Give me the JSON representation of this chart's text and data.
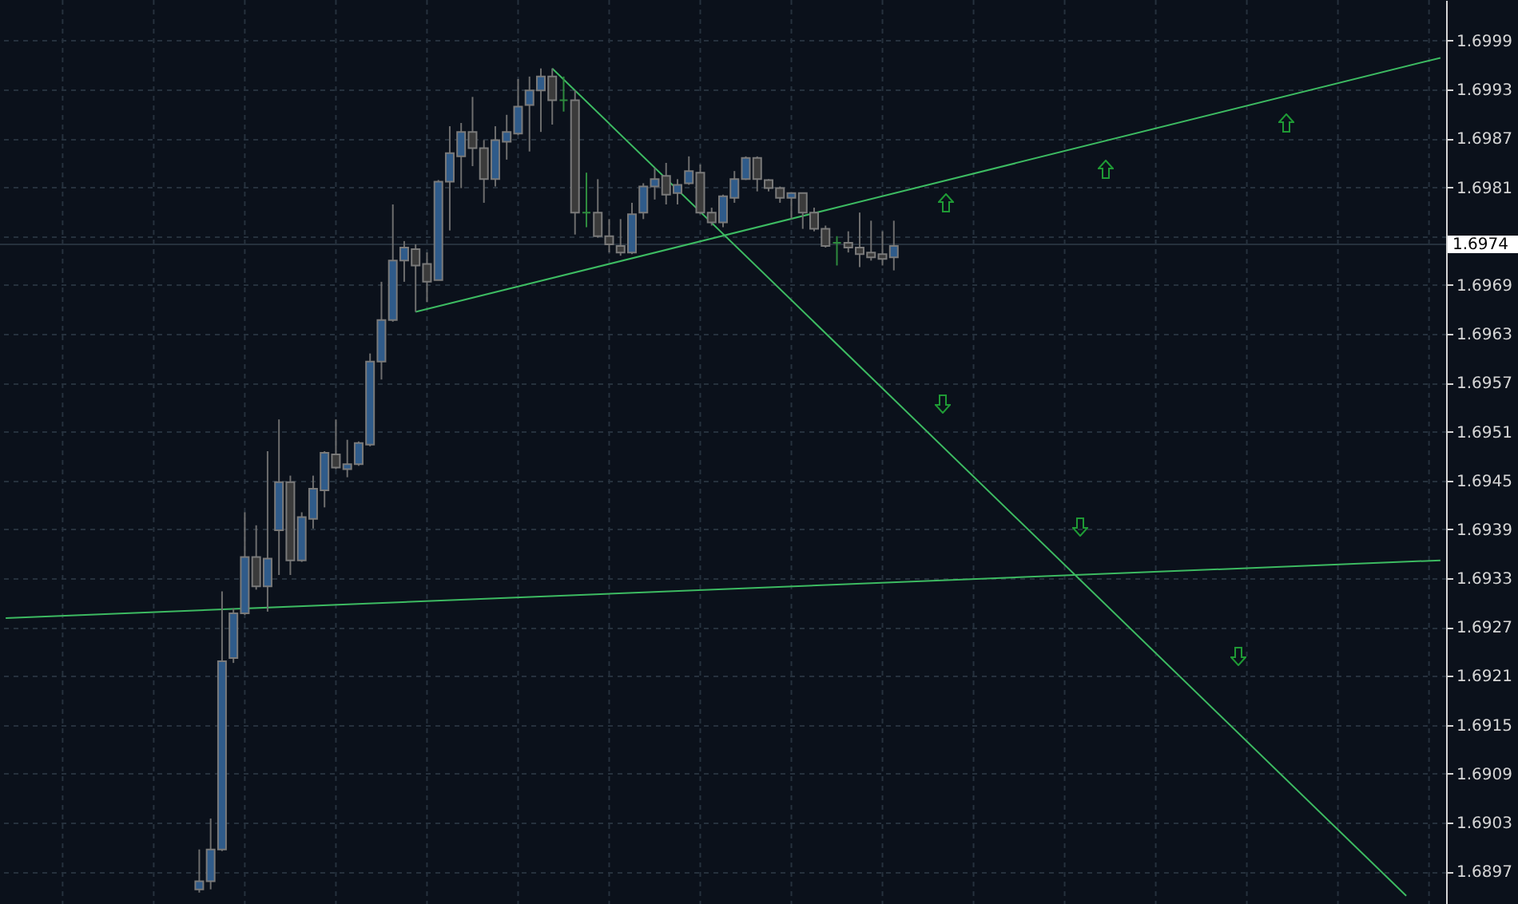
{
  "chart_data": {
    "type": "candlestick",
    "categories": [
      null,
      null,
      null,
      null,
      null,
      null,
      null,
      null,
      null,
      null,
      null,
      null,
      null,
      null,
      null,
      null,
      null,
      null,
      null,
      null,
      null,
      null,
      null,
      null,
      null,
      null,
      null,
      null,
      null,
      null,
      null,
      null,
      null,
      null,
      null,
      null,
      null,
      null,
      null,
      null,
      null,
      null,
      null,
      null,
      null,
      null,
      null,
      null,
      null,
      null,
      null,
      null,
      null,
      null,
      null,
      null,
      null,
      null,
      null,
      null,
      null,
      null,
      null,
      null,
      null,
      null,
      null,
      null,
      null,
      null,
      null,
      null,
      null,
      null,
      null,
      null,
      null,
      null,
      null,
      null,
      null,
      null,
      null,
      null,
      null,
      null,
      null,
      null,
      null,
      null,
      null,
      null,
      null,
      null,
      null,
      null,
      null,
      null,
      null,
      null,
      null,
      null,
      null,
      null,
      null,
      null,
      null,
      null,
      null,
      null,
      null,
      null,
      null,
      null,
      null,
      null,
      null,
      null,
      null,
      null,
      null,
      null,
      null,
      null,
      null,
      null,
      null
    ],
    "ohlc": [
      null,
      null,
      null,
      null,
      null,
      null,
      null,
      null,
      null,
      null,
      null,
      null,
      null,
      null,
      null,
      null,
      null,
      [
        1.68948,
        1.68997,
        1.68944,
        1.68958
      ],
      [
        1.68958,
        1.69035,
        1.68948,
        1.68997
      ],
      [
        1.68997,
        1.69314,
        1.68995,
        1.69228
      ],
      [
        1.69232,
        1.69293,
        1.69226,
        1.69287
      ],
      [
        1.69287,
        1.69411,
        1.69285,
        1.69356
      ],
      [
        1.69356,
        1.69395,
        1.69316,
        1.6932
      ],
      [
        1.6932,
        1.69486,
        1.69289,
        1.69354
      ],
      [
        1.69389,
        1.69525,
        1.69334,
        1.69448
      ],
      [
        1.69448,
        1.69456,
        1.69334,
        1.69352
      ],
      [
        1.69352,
        1.69411,
        1.6935,
        1.69405
      ],
      [
        1.69403,
        1.69456,
        1.69391,
        1.6944
      ],
      [
        1.69438,
        1.69486,
        1.69417,
        1.69484
      ],
      [
        1.69482,
        1.69525,
        1.69464,
        1.69466
      ],
      [
        1.69464,
        1.695,
        1.69454,
        1.6947
      ],
      [
        1.6947,
        1.69498,
        1.69468,
        1.69496
      ],
      [
        1.69494,
        1.69606,
        1.69492,
        1.69596
      ],
      [
        1.69596,
        1.69694,
        1.69574,
        1.69647
      ],
      [
        1.69647,
        1.69789,
        1.69645,
        1.6972
      ],
      [
        1.6972,
        1.69744,
        1.69694,
        1.69736
      ],
      [
        1.69734,
        1.6974,
        1.69657,
        1.69714
      ],
      [
        1.69716,
        1.6973,
        1.69669,
        1.69694
      ],
      [
        1.69696,
        1.69819,
        1.69696,
        1.69817
      ],
      [
        1.69817,
        1.69885,
        1.69757,
        1.69852
      ],
      [
        1.69848,
        1.69889,
        1.69809,
        1.69878
      ],
      [
        1.69878,
        1.69921,
        1.69836,
        1.69858
      ],
      [
        1.69858,
        1.69868,
        1.69791,
        1.6982
      ],
      [
        1.6982,
        1.69885,
        1.69811,
        1.69868
      ],
      [
        1.69866,
        1.69899,
        1.69844,
        1.69878
      ],
      [
        1.69876,
        1.69943,
        1.69874,
        1.69909
      ],
      [
        1.69911,
        1.69946,
        1.69854,
        1.69929
      ],
      [
        1.69929,
        1.69956,
        1.69878,
        1.69946
      ],
      [
        1.69946,
        1.69956,
        1.69887,
        1.69917
      ],
      [
        1.69917,
        1.69946,
        1.69903,
        1.69917
      ],
      [
        1.69917,
        1.69929,
        1.69752,
        1.69779
      ],
      [
        1.69779,
        1.69828,
        1.69761,
        1.69779
      ],
      [
        1.69779,
        1.6982,
        1.69748,
        1.6975
      ],
      [
        1.6975,
        1.69771,
        1.6973,
        1.6974
      ],
      [
        1.69738,
        1.69771,
        1.69726,
        1.6973
      ],
      [
        1.6973,
        1.69791,
        1.69728,
        1.69777
      ],
      [
        1.69779,
        1.69815,
        1.69771,
        1.69811
      ],
      [
        1.69811,
        1.69834,
        1.69795,
        1.6982
      ],
      [
        1.69824,
        1.6984,
        1.69789,
        1.69801
      ],
      [
        1.69803,
        1.6982,
        1.69789,
        1.69813
      ],
      [
        1.69815,
        1.69848,
        1.69813,
        1.6983
      ],
      [
        1.69828,
        1.69838,
        1.69777,
        1.69779
      ],
      [
        1.69779,
        1.69785,
        1.69763,
        1.69767
      ],
      [
        1.69767,
        1.69801,
        1.69761,
        1.69799
      ],
      [
        1.69797,
        1.6983,
        1.69791,
        1.6982
      ],
      [
        1.6982,
        1.69848,
        1.69819,
        1.69846
      ],
      [
        1.69846,
        1.69848,
        1.69805,
        1.6982
      ],
      [
        1.69819,
        1.6982,
        1.69805,
        1.69809
      ],
      [
        1.69809,
        1.69811,
        1.69791,
        1.69797
      ],
      [
        1.69797,
        1.69803,
        1.69771,
        1.69803
      ],
      [
        1.69803,
        1.69803,
        1.69759,
        1.69779
      ],
      [
        1.69779,
        1.69785,
        1.69756,
        1.69759
      ],
      [
        1.69759,
        1.69763,
        1.69736,
        1.69738
      ],
      [
        1.69742,
        1.6975,
        1.69714,
        1.69742
      ],
      [
        1.69742,
        1.69756,
        1.6973,
        1.69736
      ],
      [
        1.69736,
        1.69779,
        1.69712,
        1.69728
      ],
      [
        1.6973,
        1.69769,
        1.6972,
        1.69724
      ],
      [
        1.69728,
        1.69756,
        1.69714,
        1.69722
      ],
      [
        1.69724,
        1.69769,
        1.69708,
        1.69738
      ],
      null,
      null,
      null,
      null,
      null,
      null,
      null,
      null,
      null,
      null,
      null,
      null,
      null,
      null,
      null,
      null,
      null,
      null,
      null,
      null,
      null,
      null,
      null,
      null,
      null,
      null,
      null,
      null,
      null,
      null,
      null,
      null,
      null,
      null,
      null,
      null,
      null,
      null,
      null,
      null,
      null,
      null,
      null,
      null,
      null,
      null,
      null,
      null
    ],
    "colors": [
      null,
      null,
      null,
      null,
      null,
      null,
      null,
      null,
      null,
      null,
      null,
      null,
      null,
      null,
      null,
      null,
      null,
      "#2f5b8a",
      "#2f5b8a",
      "#2f5b8a",
      "#2f5b8a",
      "#2f5b8a",
      "#3b3b3b",
      "#2f5b8a",
      "#2f5b8a",
      "#3b3b3b",
      "#2f5b8a",
      "#2f5b8a",
      "#2f5b8a",
      "#3b3b3b",
      "#2f5b8a",
      "#2f5b8a",
      "#2f5b8a",
      "#2f5b8a",
      "#2f5b8a",
      "#2f5b8a",
      "#3b3b3b",
      "#3b3b3b",
      "#2f5b8a",
      "#2f5b8a",
      "#2f5b8a",
      "#3b3b3b",
      "#3b3b3b",
      "#2f5b8a",
      "#2f5b8a",
      "#2f5b8a",
      "#2f5b8a",
      "#2f5b8a",
      "#3b3b3b",
      "#2e8b3e",
      "#3b3b3b",
      "#2e8b3e",
      "#3b3b3b",
      "#3b3b3b",
      "#3b3b3b",
      "#2f5b8a",
      "#2f5b8a",
      "#2f5b8a",
      "#3b3b3b",
      "#2f5b8a",
      "#2f5b8a",
      "#3b3b3b",
      "#3b3b3b",
      "#2f5b8a",
      "#2f5b8a",
      "#2f5b8a",
      "#3b3b3b",
      "#3b3b3b",
      "#3b3b3b",
      "#2f5b8a",
      "#3b3b3b",
      "#3b3b3b",
      "#3b3b3b",
      "#2e8b3e",
      "#3b3b3b",
      "#3b3b3b",
      "#3b3b3b",
      "#3b3b3b",
      "#2f5b8a",
      null,
      null,
      null,
      null,
      null,
      null,
      null,
      null,
      null,
      null,
      null,
      null,
      null,
      null,
      null,
      null,
      null,
      null,
      null,
      null,
      null,
      null,
      null,
      null,
      null,
      null,
      null,
      null,
      null,
      null,
      null,
      null,
      null,
      null,
      null,
      null,
      null,
      null,
      null,
      null,
      null,
      null,
      null,
      null,
      null,
      null,
      null,
      null
    ],
    "series": [
      {
        "type": "line",
        "color": "#3dbb62",
        "values": [
          null,
          null,
          null,
          null,
          null,
          null,
          null,
          null,
          null,
          null,
          null,
          null,
          null,
          null,
          null,
          null,
          null,
          null,
          null,
          null,
          null,
          null,
          null,
          null,
          null,
          null,
          null,
          null,
          null,
          null,
          null,
          null,
          null,
          null,
          null,
          null,
          1.69657,
          null,
          null,
          null,
          null,
          null,
          null,
          null,
          null,
          null,
          null,
          null,
          null,
          null,
          null,
          null,
          null,
          null,
          null,
          null,
          null,
          null,
          null,
          null,
          null,
          null,
          null,
          null,
          null,
          null,
          null,
          null,
          null,
          null,
          null,
          null,
          null,
          null,
          null,
          null,
          null,
          null,
          null,
          null,
          null,
          null,
          null,
          null,
          null,
          null,
          null,
          null,
          null,
          null,
          null,
          null,
          null,
          null,
          null,
          null,
          null,
          null,
          null,
          null,
          null,
          null,
          null,
          null,
          null,
          null,
          null,
          null,
          null,
          null,
          null,
          null,
          null,
          null,
          null,
          null,
          null,
          null,
          null,
          null,
          null,
          null,
          null,
          null,
          null,
          null,
          1.69969
        ]
      },
      {
        "type": "line",
        "color": "#3dbb62",
        "values": [
          null,
          null,
          null,
          null,
          null,
          null,
          null,
          null,
          null,
          null,
          null,
          null,
          null,
          null,
          null,
          null,
          null,
          null,
          null,
          null,
          null,
          null,
          null,
          null,
          null,
          null,
          null,
          null,
          null,
          null,
          null,
          null,
          null,
          null,
          null,
          null,
          null,
          null,
          null,
          null,
          null,
          null,
          null,
          null,
          null,
          null,
          null,
          null,
          1.69956,
          null,
          null,
          null,
          null,
          null,
          null,
          null,
          null,
          null,
          null,
          null,
          null,
          null,
          null,
          null,
          null,
          null,
          null,
          null,
          null,
          null,
          null,
          null,
          null,
          null,
          null,
          null,
          null,
          null,
          null,
          null,
          null,
          null,
          null,
          null,
          null,
          null,
          null,
          null,
          null,
          null,
          null,
          null,
          null,
          null,
          null,
          null,
          null,
          null,
          null,
          null,
          null,
          null,
          null,
          null,
          null,
          null,
          null,
          null,
          null,
          null,
          null,
          null,
          null,
          null,
          null,
          null,
          null,
          null,
          null,
          null,
          null,
          null,
          null,
          1.6894,
          null,
          null,
          null
        ]
      },
      {
        "type": "line",
        "color": "#3dbb62",
        "values": [
          1.69281,
          null,
          null,
          null,
          null,
          null,
          null,
          null,
          null,
          null,
          null,
          null,
          null,
          null,
          null,
          null,
          null,
          null,
          null,
          null,
          null,
          null,
          null,
          null,
          null,
          null,
          null,
          null,
          null,
          null,
          null,
          null,
          null,
          null,
          null,
          null,
          null,
          null,
          null,
          null,
          null,
          null,
          null,
          null,
          null,
          null,
          null,
          null,
          null,
          null,
          null,
          null,
          null,
          null,
          null,
          null,
          null,
          null,
          null,
          null,
          null,
          null,
          null,
          null,
          null,
          null,
          null,
          null,
          null,
          null,
          null,
          null,
          null,
          null,
          null,
          null,
          null,
          null,
          null,
          null,
          null,
          null,
          null,
          null,
          null,
          null,
          null,
          null,
          null,
          null,
          null,
          null,
          null,
          null,
          null,
          null,
          null,
          null,
          null,
          null,
          null,
          null,
          null,
          null,
          null,
          null,
          null,
          null,
          null,
          null,
          null,
          null,
          null,
          null,
          null,
          null,
          null,
          null,
          null,
          null,
          null,
          null,
          null,
          null,
          null,
          null,
          1.69352
        ]
      }
    ],
    "ylim": [
      1.6893,
      1.7004
    ],
    "yticks": [
      1.6999,
      1.6993,
      1.6987,
      1.6981,
      {
        "value": 1.6975,
        "label": null
      },
      1.6969,
      1.6963,
      1.6957,
      1.6951,
      1.6945,
      1.6939,
      1.6933,
      1.6927,
      1.6921,
      1.6915,
      1.6909,
      1.6903,
      1.6897
    ],
    "ref_lines": [
      {
        "axis": "y",
        "value": 1.6974,
        "label": "1.6974",
        "color": "#26313d"
      }
    ],
    "grid": true
  }
}
